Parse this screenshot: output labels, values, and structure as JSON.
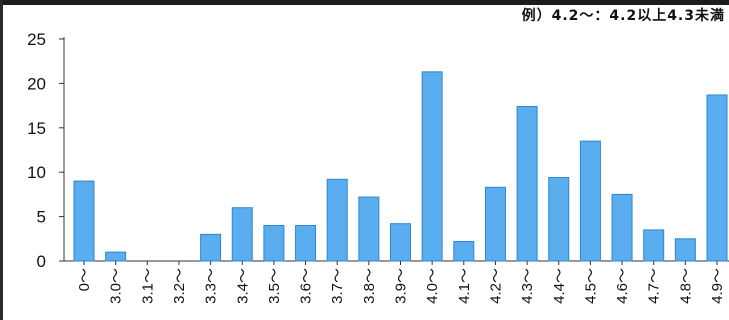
{
  "note": "例）4.2～：4.2以上4.3未満",
  "colors": {
    "bar_fill": "#5aaef0",
    "bar_stroke": "#2f86cf",
    "axis": "#333333"
  },
  "chart_data": {
    "type": "bar",
    "categories": [
      "0～",
      "3.0～",
      "3.1～",
      "3.2～",
      "3.3～",
      "3.4～",
      "3.5～",
      "3.6～",
      "3.7～",
      "3.8～",
      "3.9～",
      "4.0～",
      "4.1～",
      "4.2～",
      "4.3～",
      "4.4～",
      "4.5～",
      "4.6～",
      "4.7～",
      "4.8～",
      "4.9～"
    ],
    "values": [
      9,
      1,
      0,
      0,
      3,
      6,
      4,
      4,
      9.2,
      7.2,
      4.2,
      21.3,
      2.2,
      8.3,
      17.4,
      9.4,
      13.5,
      7.5,
      3.5,
      2.5,
      18.7
    ],
    "yticks": [
      0,
      5,
      10,
      15,
      20,
      25
    ],
    "ylim": [
      0,
      25
    ],
    "grid": false,
    "legend": "none"
  }
}
